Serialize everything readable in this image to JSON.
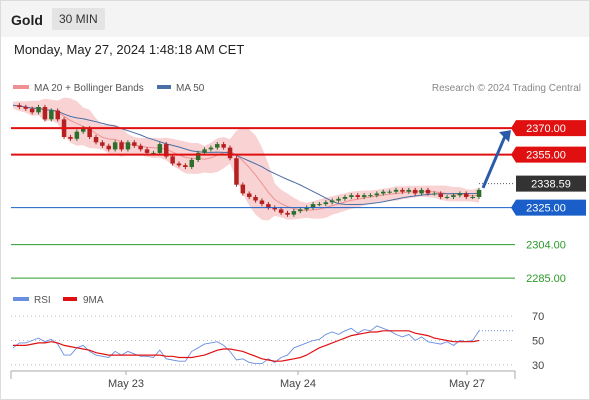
{
  "header": {
    "instrument": "Gold",
    "timeframe": "30 MIN"
  },
  "datetime": "Monday, May 27, 2024 1:48:18 AM CET",
  "legend": {
    "bollinger": "MA 20 + Bollinger Bands",
    "ma50": "MA 50",
    "rsi": "RSI",
    "rsi_ma": "9MA"
  },
  "credit": "Research © 2024 Trading Central",
  "colors": {
    "candle_up": "#2c6e2c",
    "candle_down": "#b52020",
    "bollinger_band": "#f8c8c8",
    "ma20": "#f09090",
    "ma50": "#4a6fa5",
    "resistance": "#e01010",
    "support_blue": "#1a5fc9",
    "support_green": "#2a9a2a",
    "current": "#333333",
    "rsi": "#6a8ee0",
    "rsi_ma": "#e01010",
    "arrow": "#2a5aa8"
  },
  "chart_data": [
    {
      "type": "candlestick",
      "x_ticks": [
        "May 23",
        "May 24",
        "May 27"
      ],
      "ylim": [
        2280,
        2382
      ],
      "levels": [
        {
          "label": "2370.00",
          "value": 2370.0,
          "kind": "resistance"
        },
        {
          "label": "2355.00",
          "value": 2355.0,
          "kind": "resistance"
        },
        {
          "label": "2338.59",
          "value": 2338.59,
          "kind": "current"
        },
        {
          "label": "2325.00",
          "value": 2325.0,
          "kind": "support"
        },
        {
          "label": "2304.00",
          "value": 2304.0,
          "kind": "support-minor"
        },
        {
          "label": "2285.00",
          "value": 2285.0,
          "kind": "support-minor"
        }
      ],
      "price_path": [
        2383,
        2382,
        2381,
        2379,
        2382,
        2375,
        2380,
        2375,
        2365,
        2364,
        2368,
        2370,
        2365,
        2362,
        2360,
        2358,
        2362,
        2358,
        2362,
        2360,
        2358,
        2356,
        2356,
        2361,
        2354,
        2350,
        2349,
        2348,
        2352,
        2356,
        2358,
        2359,
        2361,
        2359,
        2353,
        2338,
        2333,
        2331,
        2329,
        2327,
        2325,
        2324,
        2322,
        2321,
        2323,
        2324,
        2325,
        2327,
        2327,
        2328,
        2329,
        2330,
        2331,
        2332,
        2331,
        2332,
        2332,
        2333,
        2334,
        2334,
        2335,
        2334,
        2335,
        2333,
        2335,
        2333,
        2333,
        2331,
        2331,
        2332,
        2333,
        2331,
        2331,
        2335
      ],
      "forecast_target": 2370.0
    },
    {
      "type": "line",
      "title": "RSI",
      "ylim": [
        20,
        80
      ],
      "y_ticks": [
        70,
        50,
        30
      ],
      "series": [
        {
          "name": "RSI",
          "values": [
            44,
            48,
            48,
            50,
            52,
            49,
            51,
            47,
            38,
            38,
            44,
            46,
            41,
            38,
            37,
            36,
            41,
            38,
            41,
            39,
            37,
            37,
            36,
            42,
            35,
            34,
            33,
            33,
            41,
            44,
            47,
            48,
            49,
            46,
            41,
            34,
            35,
            32,
            31,
            31,
            35,
            32,
            36,
            38,
            44,
            46,
            48,
            50,
            51,
            55,
            57,
            55,
            58,
            60,
            56,
            59,
            58,
            62,
            60,
            58,
            55,
            53,
            55,
            50,
            53,
            49,
            48,
            47,
            49,
            46,
            50,
            49,
            50,
            58
          ]
        },
        {
          "name": "9MA",
          "values": [
            46,
            46,
            46,
            47,
            48,
            48,
            49,
            48,
            46,
            45,
            44,
            43,
            42,
            40,
            39,
            38,
            38,
            38,
            38,
            38,
            38,
            38,
            38,
            38,
            37,
            37,
            36,
            36,
            36,
            37,
            38,
            40,
            42,
            43,
            43,
            42,
            41,
            39,
            37,
            35,
            34,
            33,
            33,
            34,
            35,
            36,
            38,
            41,
            44,
            46,
            48,
            50,
            52,
            54,
            55,
            56,
            57,
            57,
            58,
            58,
            58,
            58,
            58,
            56,
            55,
            54,
            52,
            51,
            50,
            49,
            49,
            49,
            49,
            50
          ]
        }
      ]
    }
  ]
}
